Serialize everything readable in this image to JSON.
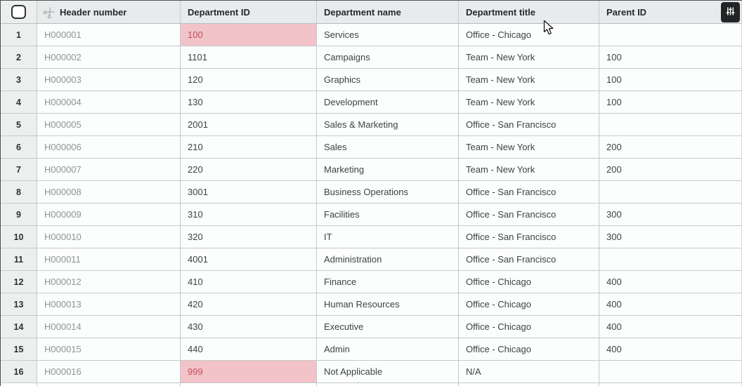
{
  "ui": {
    "select_all_checkbox": {
      "checked": false
    },
    "column_settings_button": {
      "icon": "sliders-icon"
    },
    "primary_column_icon": "scissors-icon"
  },
  "table": {
    "columns": [
      {
        "key": "row_number",
        "label": ""
      },
      {
        "key": "header_number",
        "label": "Header number"
      },
      {
        "key": "department_id",
        "label": "Department ID"
      },
      {
        "key": "department_name",
        "label": "Department name"
      },
      {
        "key": "department_title",
        "label": "Department title"
      },
      {
        "key": "parent_id",
        "label": "Parent ID"
      }
    ],
    "rows": [
      {
        "row_number": "1",
        "header_number": "H000001",
        "department_id": "100",
        "department_id_error": true,
        "department_name": "Services",
        "department_title": "Office - Chicago",
        "parent_id": ""
      },
      {
        "row_number": "2",
        "header_number": "H000002",
        "department_id": "1101",
        "department_id_error": false,
        "department_name": "Campaigns",
        "department_title": "Team - New York",
        "parent_id": "100"
      },
      {
        "row_number": "3",
        "header_number": "H000003",
        "department_id": "120",
        "department_id_error": false,
        "department_name": "Graphics",
        "department_title": "Team - New York",
        "parent_id": "100"
      },
      {
        "row_number": "4",
        "header_number": "H000004",
        "department_id": "130",
        "department_id_error": false,
        "department_name": "Development",
        "department_title": "Team - New York",
        "parent_id": "100"
      },
      {
        "row_number": "5",
        "header_number": "H000005",
        "department_id": "2001",
        "department_id_error": false,
        "department_name": "Sales & Marketing",
        "department_title": "Office - San Francisco",
        "parent_id": ""
      },
      {
        "row_number": "6",
        "header_number": "H000006",
        "department_id": "210",
        "department_id_error": false,
        "department_name": "Sales",
        "department_title": "Team - New York",
        "parent_id": "200"
      },
      {
        "row_number": "7",
        "header_number": "H000007",
        "department_id": "220",
        "department_id_error": false,
        "department_name": "Marketing",
        "department_title": "Team - New York",
        "parent_id": "200"
      },
      {
        "row_number": "8",
        "header_number": "H000008",
        "department_id": "3001",
        "department_id_error": false,
        "department_name": "Business Operations",
        "department_title": "Office - San Francisco",
        "parent_id": ""
      },
      {
        "row_number": "9",
        "header_number": "H000009",
        "department_id": "310",
        "department_id_error": false,
        "department_name": "Facilities",
        "department_title": "Office - San Francisco",
        "parent_id": "300"
      },
      {
        "row_number": "10",
        "header_number": "H000010",
        "department_id": "320",
        "department_id_error": false,
        "department_name": "IT",
        "department_title": "Office - San Francisco",
        "parent_id": "300"
      },
      {
        "row_number": "11",
        "header_number": "H000011",
        "department_id": "4001",
        "department_id_error": false,
        "department_name": "Administration",
        "department_title": "Office - San Francisco",
        "parent_id": ""
      },
      {
        "row_number": "12",
        "header_number": "H000012",
        "department_id": "410",
        "department_id_error": false,
        "department_name": "Finance",
        "department_title": "Office - Chicago",
        "parent_id": "400"
      },
      {
        "row_number": "13",
        "header_number": "H000013",
        "department_id": "420",
        "department_id_error": false,
        "department_name": "Human Resources",
        "department_title": "Office - Chicago",
        "parent_id": "400"
      },
      {
        "row_number": "14",
        "header_number": "H000014",
        "department_id": "430",
        "department_id_error": false,
        "department_name": "Executive",
        "department_title": "Office - Chicago",
        "parent_id": "400"
      },
      {
        "row_number": "15",
        "header_number": "H000015",
        "department_id": "440",
        "department_id_error": false,
        "department_name": "Admin",
        "department_title": "Office - Chicago",
        "parent_id": "400"
      },
      {
        "row_number": "16",
        "header_number": "H000016",
        "department_id": "999",
        "department_id_error": true,
        "department_name": "Not Applicable",
        "department_title": "N/A",
        "parent_id": ""
      }
    ]
  },
  "colors": {
    "header_bg": "#e8ebeb",
    "row_number_bg": "#edefef",
    "grid_border": "#c6caca",
    "error_cell_bg": "#f2c3c9",
    "error_cell_text": "#c44f5a",
    "settings_button_bg": "#222526"
  }
}
